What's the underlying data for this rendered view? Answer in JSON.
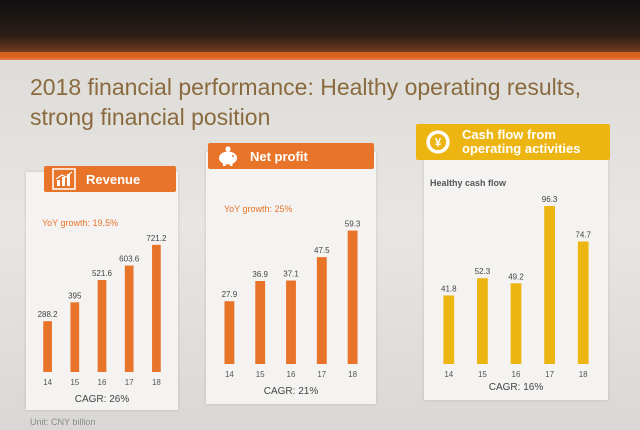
{
  "title": "2018 financial performance: Healthy operating results, strong financial position",
  "footnote": "Unit: CNY billion",
  "colors": {
    "orange": "#e8742a",
    "yellow": "#edb511",
    "title": "#8a6a3e"
  },
  "chart_data": [
    {
      "type": "bar",
      "title": "Revenue",
      "icon": "bar-chart-icon",
      "subtitle": "YoY growth: 19.5%",
      "categories": [
        "14",
        "15",
        "16",
        "17",
        "18"
      ],
      "values": [
        288.2,
        395.0,
        521.6,
        603.6,
        721.2
      ],
      "value_labels": [
        "288.2",
        "395",
        "521.6",
        "603.6",
        "721.2"
      ],
      "ylim": [
        0,
        760
      ],
      "footer": "CAGR: 26%",
      "color": "#e8742a"
    },
    {
      "type": "bar",
      "title": "Net profit",
      "icon": "piggy-bank-icon",
      "subtitle": "YoY growth: 25%",
      "categories": [
        "14",
        "15",
        "16",
        "17",
        "18"
      ],
      "values": [
        27.9,
        36.9,
        37.1,
        47.5,
        59.3
      ],
      "value_labels": [
        "27.9",
        "36.9",
        "37.1",
        "47.5",
        "59.3"
      ],
      "ylim": [
        0,
        64
      ],
      "footer": "CAGR: 21%",
      "color": "#e8742a"
    },
    {
      "type": "bar",
      "title": "Cash flow from operating activities",
      "icon": "coins-icon",
      "subtitle": "Healthy cash flow",
      "categories": [
        "14",
        "15",
        "16",
        "17",
        "18"
      ],
      "values": [
        41.8,
        52.3,
        49.2,
        96.3,
        74.7
      ],
      "value_labels": [
        "41.8",
        "52.3",
        "49.2",
        "96.3",
        "74.7"
      ],
      "ylim": [
        0,
        100
      ],
      "footer": "CAGR: 16%",
      "color": "#edb511"
    }
  ]
}
